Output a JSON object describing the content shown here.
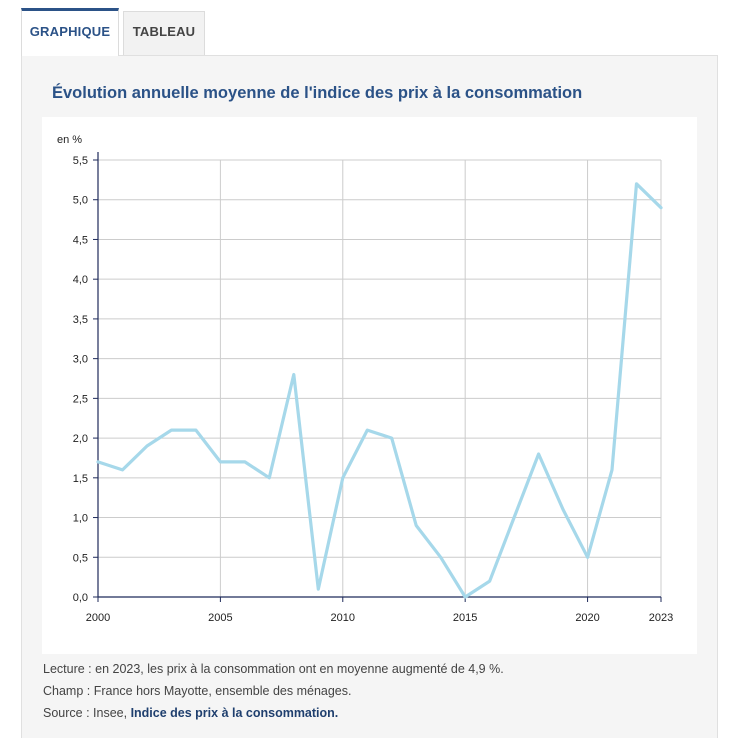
{
  "tabs": [
    {
      "label": "GRAPHIQUE",
      "active": true
    },
    {
      "label": "TABLEAU",
      "active": false
    }
  ],
  "chart_title": "Évolution annuelle moyenne de l'indice des prix à la consommation",
  "notes": {
    "lecture": "Lecture : en 2023, les prix à la consommation ont en moyenne augmenté de 4,9 %.",
    "champ": "Champ : France hors Mayotte, ensemble des ménages.",
    "source_prefix": "Source : Insee, ",
    "source_link": "Indice des prix à la consommation."
  },
  "colors": {
    "accent": "#2b5287",
    "line": "#a6d8ea",
    "grid": "#cccccc",
    "axis": "#1e2a5a",
    "panel": "#f5f5f5"
  },
  "chart_data": {
    "type": "line",
    "title": "Évolution annuelle moyenne de l'indice des prix à la consommation",
    "ylabel": "en %",
    "xlabel": "",
    "x": [
      2000,
      2001,
      2002,
      2003,
      2004,
      2005,
      2006,
      2007,
      2008,
      2009,
      2010,
      2011,
      2012,
      2013,
      2014,
      2015,
      2016,
      2017,
      2018,
      2019,
      2020,
      2021,
      2022,
      2023
    ],
    "series": [
      {
        "values": [
          1.7,
          1.6,
          1.9,
          2.1,
          2.1,
          1.7,
          1.7,
          1.5,
          2.8,
          0.1,
          1.5,
          2.1,
          2.0,
          0.9,
          0.5,
          0.0,
          0.2,
          1.0,
          1.8,
          1.1,
          0.5,
          1.6,
          5.2,
          4.9
        ]
      }
    ],
    "x_ticks": [
      2000,
      2005,
      2010,
      2015,
      2020,
      2023
    ],
    "x_tick_labels": [
      "2000",
      "2005",
      "2010",
      "2015",
      "2020",
      "2023"
    ],
    "y_ticks": [
      0,
      0.5,
      1,
      1.5,
      2,
      2.5,
      3,
      3.5,
      4,
      4.5,
      5,
      5.5
    ],
    "y_tick_labels": [
      "0,0",
      "0,5",
      "1,0",
      "1,5",
      "2,0",
      "2,5",
      "3,0",
      "3,5",
      "4,0",
      "4,5",
      "5,0",
      "5,5"
    ],
    "xlim": [
      2000,
      2023
    ],
    "ylim": [
      0,
      5.5
    ],
    "grid": true,
    "legend": "none"
  }
}
